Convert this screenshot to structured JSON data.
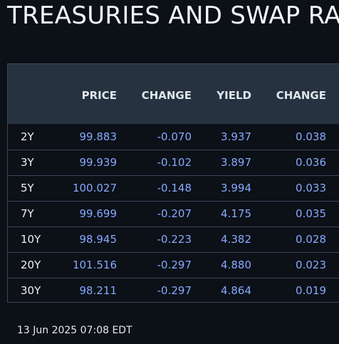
{
  "title": "TREASURIES AND SWAP RATES",
  "table": {
    "headers": [
      "",
      "PRICE",
      "CHANGE",
      "YIELD",
      "CHANGE"
    ],
    "rows": [
      {
        "tenor": "2Y",
        "price": "99.883",
        "price_change": "-0.070",
        "yield": "3.937",
        "yield_change": "0.038"
      },
      {
        "tenor": "3Y",
        "price": "99.939",
        "price_change": "-0.102",
        "yield": "3.897",
        "yield_change": "0.036"
      },
      {
        "tenor": "5Y",
        "price": "100.027",
        "price_change": "-0.148",
        "yield": "3.994",
        "yield_change": "0.033"
      },
      {
        "tenor": "7Y",
        "price": "99.699",
        "price_change": "-0.207",
        "yield": "4.175",
        "yield_change": "0.035"
      },
      {
        "tenor": "10Y",
        "price": "98.945",
        "price_change": "-0.223",
        "yield": "4.382",
        "yield_change": "0.028"
      },
      {
        "tenor": "20Y",
        "price": "101.516",
        "price_change": "-0.297",
        "yield": "4.880",
        "yield_change": "0.023"
      },
      {
        "tenor": "30Y",
        "price": "98.211",
        "price_change": "-0.297",
        "yield": "4.864",
        "yield_change": "0.019"
      }
    ]
  },
  "footer": {
    "timestamp": "13 Jun 2025 07:08 EDT"
  },
  "colors": {
    "background": "#0c1017",
    "header_background": "#26323f",
    "value_text": "#86a9ff",
    "label_text": "#eef1f5",
    "border": "#3a4656"
  }
}
